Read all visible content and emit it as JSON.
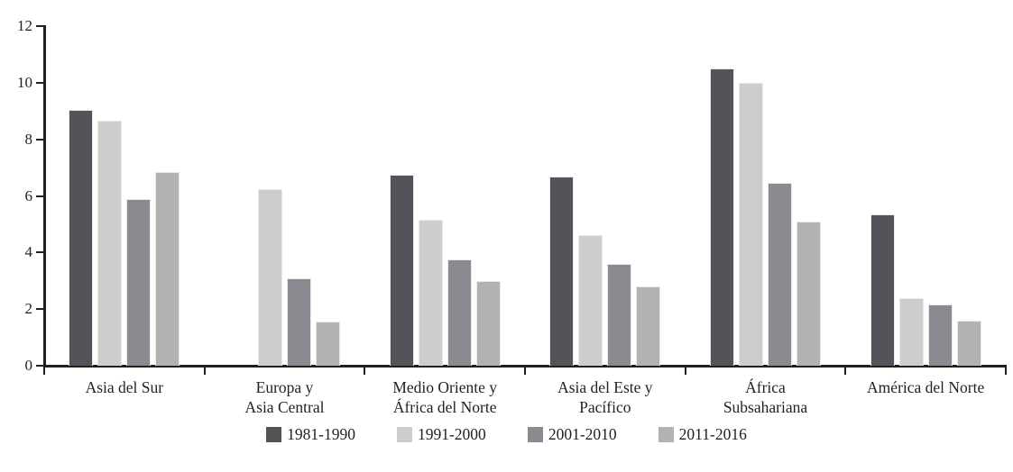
{
  "chart_data": {
    "type": "bar",
    "title": "",
    "xlabel": "",
    "ylabel": "",
    "ylim": [
      0,
      12
    ],
    "yticks": [
      0,
      2,
      4,
      6,
      8,
      10,
      12
    ],
    "grid": false,
    "legend_position": "bottom",
    "categories": [
      "Asia del Sur",
      "Europa y\nAsia Central",
      "Medio Oriente y\nÁfrica del Norte",
      "Asia del Este y\nPacífico",
      "África\nSubsahariana",
      "América del Norte"
    ],
    "series": [
      {
        "name": "1981-1990",
        "color": "#54535a",
        "values": [
          9.05,
          null,
          6.75,
          6.7,
          10.5,
          5.35
        ]
      },
      {
        "name": "1991-2000",
        "color": "#cfcdcc",
        "values": [
          8.65,
          6.25,
          5.15,
          4.6,
          10.0,
          2.4
        ]
      },
      {
        "name": "2001-2010",
        "color": "#8b8a90",
        "values": [
          5.9,
          3.1,
          3.75,
          3.6,
          6.45,
          2.15
        ]
      },
      {
        "name": "2011-2016",
        "color": "#b3b1b2",
        "values": [
          6.85,
          1.55,
          3.0,
          2.8,
          5.1,
          1.6
        ]
      }
    ],
    "axis_color": "#231f20",
    "text_color": "#221f26"
  }
}
